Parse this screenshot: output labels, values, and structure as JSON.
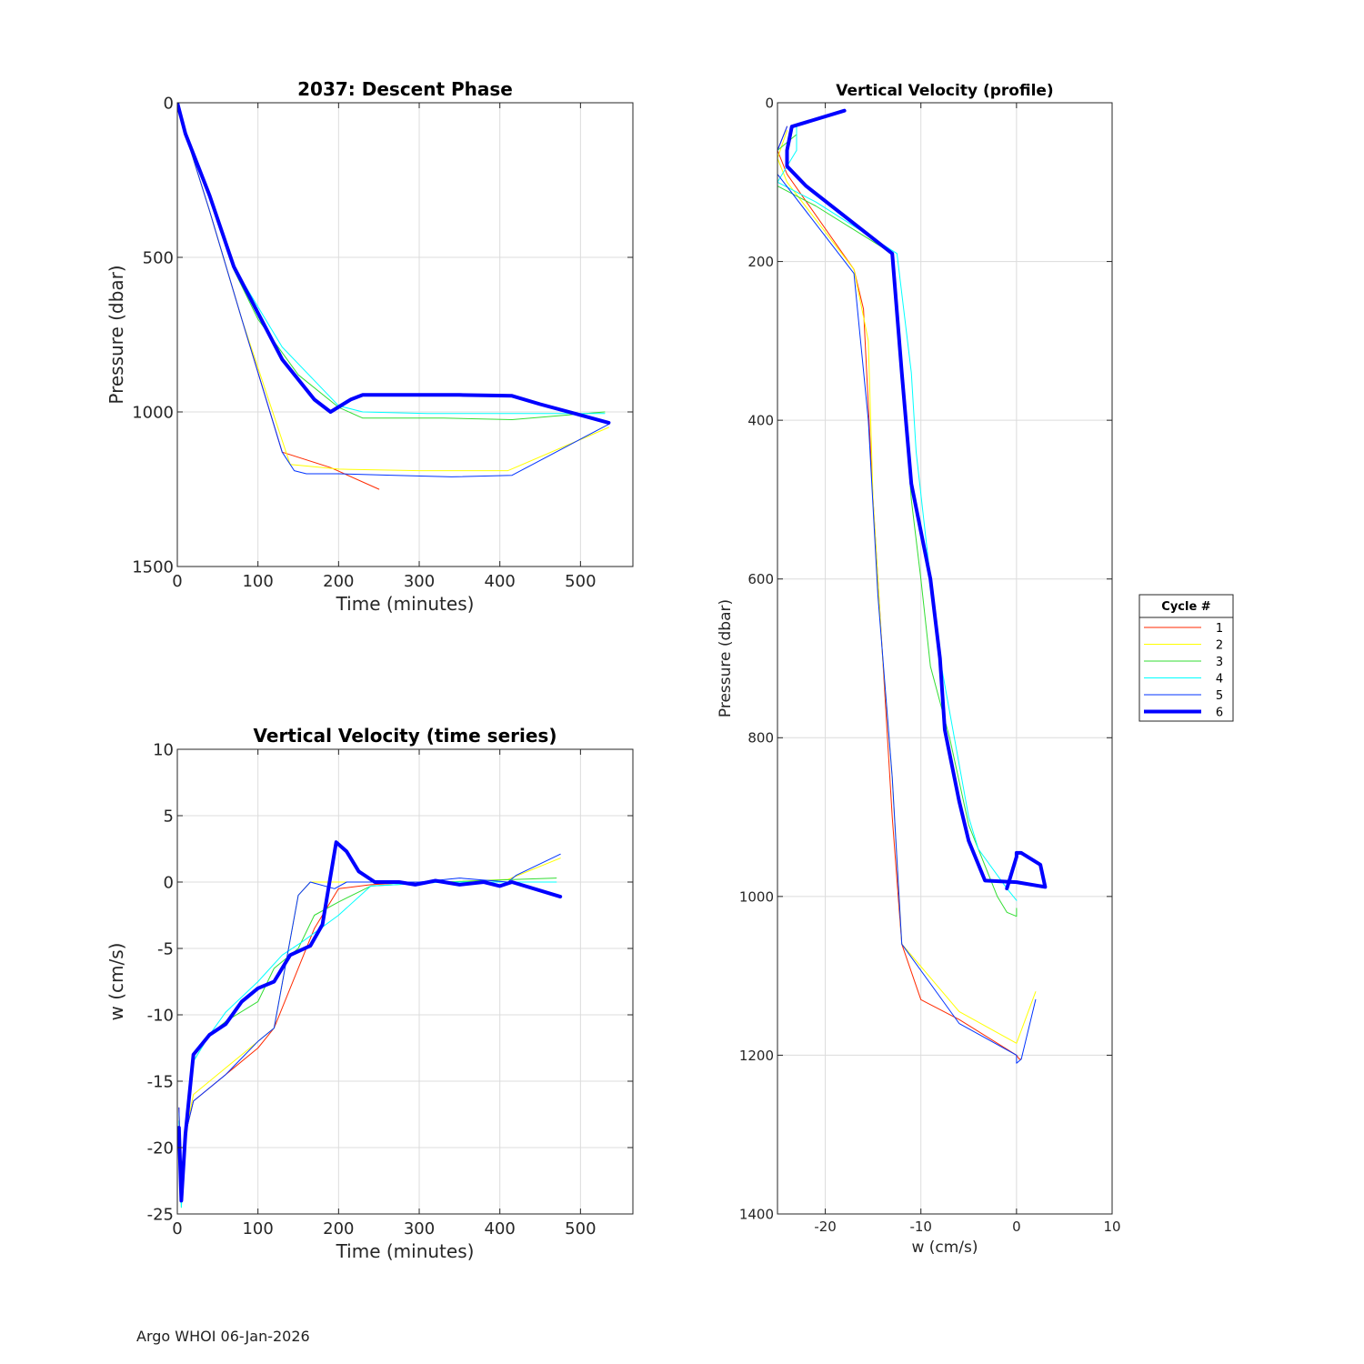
{
  "footer": "Argo WHOI 06-Jan-2026",
  "legend": {
    "title": "Cycle #",
    "entries": [
      {
        "label": "1",
        "color": "#ff2a00",
        "width": 1
      },
      {
        "label": "2",
        "color": "#ffff00",
        "width": 1
      },
      {
        "label": "3",
        "color": "#33dd33",
        "width": 1
      },
      {
        "label": "4",
        "color": "#00ffff",
        "width": 1
      },
      {
        "label": "5",
        "color": "#0033ff",
        "width": 1
      },
      {
        "label": "6",
        "color": "#0000ff",
        "width": 4
      }
    ]
  },
  "chart_data": [
    {
      "id": "descent",
      "type": "line",
      "title": "2037: Descent Phase",
      "xlabel": "Time (minutes)",
      "ylabel": "Pressure (dbar)",
      "xlim": [
        0,
        565
      ],
      "ylim": [
        0,
        1500
      ],
      "y_reversed": true,
      "xticks": [
        0,
        100,
        200,
        300,
        400,
        500
      ],
      "yticks": [
        0,
        500,
        1000,
        1500
      ],
      "grid": true,
      "series": [
        {
          "name": "1",
          "points": [
            [
              0,
              0
            ],
            [
              10,
              100
            ],
            [
              40,
              350
            ],
            [
              80,
              700
            ],
            [
              130,
              1130
            ],
            [
              190,
              1180
            ],
            [
              250,
              1250
            ]
          ]
        },
        {
          "name": "2",
          "points": [
            [
              0,
              0
            ],
            [
              10,
              100
            ],
            [
              40,
              350
            ],
            [
              80,
              700
            ],
            [
              140,
              1170
            ],
            [
              200,
              1185
            ],
            [
              300,
              1190
            ],
            [
              410,
              1190
            ],
            [
              535,
              1050
            ]
          ]
        },
        {
          "name": "3",
          "points": [
            [
              0,
              0
            ],
            [
              10,
              100
            ],
            [
              40,
              310
            ],
            [
              70,
              540
            ],
            [
              100,
              700
            ],
            [
              150,
              880
            ],
            [
              200,
              985
            ],
            [
              230,
              1020
            ],
            [
              330,
              1020
            ],
            [
              415,
              1025
            ],
            [
              530,
              1000
            ]
          ]
        },
        {
          "name": "4",
          "points": [
            [
              0,
              0
            ],
            [
              10,
              100
            ],
            [
              40,
              300
            ],
            [
              70,
              530
            ],
            [
              130,
              790
            ],
            [
              200,
              980
            ],
            [
              230,
              1000
            ],
            [
              310,
              1005
            ],
            [
              410,
              1005
            ],
            [
              530,
              1005
            ]
          ]
        },
        {
          "name": "5",
          "points": [
            [
              0,
              0
            ],
            [
              10,
              100
            ],
            [
              40,
              350
            ],
            [
              80,
              700
            ],
            [
              130,
              1130
            ],
            [
              145,
              1190
            ],
            [
              160,
              1200
            ],
            [
              200,
              1200
            ],
            [
              270,
              1205
            ],
            [
              340,
              1210
            ],
            [
              415,
              1205
            ],
            [
              535,
              1040
            ]
          ]
        },
        {
          "name": "6",
          "points": [
            [
              0,
              0
            ],
            [
              10,
              100
            ],
            [
              40,
              300
            ],
            [
              70,
              530
            ],
            [
              130,
              830
            ],
            [
              170,
              960
            ],
            [
              190,
              1000
            ],
            [
              215,
              960
            ],
            [
              230,
              945
            ],
            [
              300,
              945
            ],
            [
              350,
              945
            ],
            [
              415,
              948
            ],
            [
              450,
              975
            ],
            [
              535,
              1035
            ]
          ]
        }
      ]
    },
    {
      "id": "wtime",
      "type": "line",
      "title": "Vertical Velocity (time series)",
      "xlabel": "Time (minutes)",
      "ylabel": "w (cm/s)",
      "xlim": [
        0,
        565
      ],
      "ylim": [
        -25,
        10
      ],
      "y_reversed": false,
      "xticks": [
        0,
        100,
        200,
        300,
        400,
        500
      ],
      "yticks": [
        -25,
        -20,
        -15,
        -10,
        -5,
        0,
        5,
        10
      ],
      "grid": true,
      "series": [
        {
          "name": "1",
          "points": [
            [
              2,
              -17
            ],
            [
              5,
              -24
            ],
            [
              10,
              -19
            ],
            [
              20,
              -16.5
            ],
            [
              60,
              -14.5
            ],
            [
              100,
              -12.5
            ],
            [
              120,
              -11
            ],
            [
              140,
              -8
            ],
            [
              170,
              -3.5
            ],
            [
              200,
              -0.5
            ],
            [
              240,
              -0.2
            ],
            [
              300,
              0
            ]
          ]
        },
        {
          "name": "2",
          "points": [
            [
              2,
              -17.5
            ],
            [
              5,
              -24.5
            ],
            [
              10,
              -19
            ],
            [
              20,
              -16
            ],
            [
              60,
              -14
            ],
            [
              100,
              -12
            ],
            [
              120,
              -11
            ],
            [
              150,
              -1
            ],
            [
              165,
              0
            ],
            [
              190,
              0
            ],
            [
              250,
              0
            ],
            [
              330,
              0
            ],
            [
              410,
              0.2
            ],
            [
              475,
              1.8
            ]
          ]
        },
        {
          "name": "3",
          "points": [
            [
              2,
              -18
            ],
            [
              5,
              -24
            ],
            [
              10,
              -18.5
            ],
            [
              20,
              -13.5
            ],
            [
              40,
              -11.5
            ],
            [
              60,
              -10.5
            ],
            [
              100,
              -9
            ],
            [
              120,
              -6.5
            ],
            [
              150,
              -5
            ],
            [
              170,
              -2.5
            ],
            [
              200,
              -1.5
            ],
            [
              240,
              -0.3
            ],
            [
              330,
              0
            ],
            [
              420,
              0.2
            ],
            [
              470,
              0.3
            ]
          ]
        },
        {
          "name": "4",
          "points": [
            [
              2,
              -18
            ],
            [
              5,
              -24.5
            ],
            [
              10,
              -18.5
            ],
            [
              20,
              -13.5
            ],
            [
              40,
              -11.5
            ],
            [
              60,
              -9.8
            ],
            [
              100,
              -7.5
            ],
            [
              130,
              -5.5
            ],
            [
              155,
              -4.5
            ],
            [
              200,
              -2.5
            ],
            [
              240,
              -0.3
            ],
            [
              330,
              0
            ],
            [
              420,
              0
            ],
            [
              470,
              0
            ]
          ]
        },
        {
          "name": "5",
          "points": [
            [
              2,
              -17
            ],
            [
              5,
              -24
            ],
            [
              10,
              -19
            ],
            [
              20,
              -16.5
            ],
            [
              60,
              -14.5
            ],
            [
              100,
              -12
            ],
            [
              120,
              -11
            ],
            [
              150,
              -1
            ],
            [
              165,
              0
            ],
            [
              195,
              -0.5
            ],
            [
              210,
              0
            ],
            [
              240,
              0
            ],
            [
              300,
              0
            ],
            [
              350,
              0.3
            ],
            [
              410,
              0
            ],
            [
              420,
              0.5
            ],
            [
              475,
              2.1
            ]
          ]
        },
        {
          "name": "6",
          "points": [
            [
              2,
              -18.5
            ],
            [
              5,
              -24
            ],
            [
              10,
              -19
            ],
            [
              20,
              -13
            ],
            [
              40,
              -11.5
            ],
            [
              60,
              -10.7
            ],
            [
              80,
              -9
            ],
            [
              100,
              -8
            ],
            [
              120,
              -7.5
            ],
            [
              140,
              -5.5
            ],
            [
              165,
              -4.8
            ],
            [
              180,
              -3.2
            ],
            [
              197,
              3
            ],
            [
              210,
              2.3
            ],
            [
              225,
              0.8
            ],
            [
              245,
              0
            ],
            [
              275,
              0
            ],
            [
              295,
              -0.2
            ],
            [
              320,
              0.1
            ],
            [
              350,
              -0.2
            ],
            [
              380,
              0
            ],
            [
              400,
              -0.3
            ],
            [
              415,
              0
            ],
            [
              475,
              -1.1
            ]
          ]
        }
      ]
    },
    {
      "id": "wprofile",
      "type": "line",
      "title": "Vertical Velocity (profile)",
      "xlabel": "w (cm/s)",
      "ylabel": "Pressure (dbar)",
      "xlim": [
        -25,
        10
      ],
      "ylim": [
        0,
        1400
      ],
      "y_reversed": true,
      "xticks": [
        -20,
        -10,
        0,
        10
      ],
      "yticks": [
        0,
        200,
        400,
        600,
        800,
        1000,
        1200,
        1400
      ],
      "grid": true,
      "series": [
        {
          "name": "1",
          "points": [
            [
              -24,
              30
            ],
            [
              -25,
              60
            ],
            [
              -24,
              90
            ],
            [
              -17,
              210
            ],
            [
              -16,
              260
            ],
            [
              -15,
              500
            ],
            [
              -14,
              700
            ],
            [
              -13,
              900
            ],
            [
              -12,
              1060
            ],
            [
              -10,
              1130
            ],
            [
              -6,
              1155
            ],
            [
              0,
              1200
            ],
            [
              0.3,
              1205
            ],
            [
              0.5,
              1205
            ]
          ]
        },
        {
          "name": "2",
          "points": [
            [
              -24,
              35
            ],
            [
              -25,
              70
            ],
            [
              -24,
              100
            ],
            [
              -17,
              210
            ],
            [
              -15.5,
              300
            ],
            [
              -15,
              500
            ],
            [
              -14,
              700
            ],
            [
              -13,
              850
            ],
            [
              -12,
              1060
            ],
            [
              -6,
              1145
            ],
            [
              0,
              1185
            ],
            [
              2,
              1120
            ]
          ]
        },
        {
          "name": "3",
          "points": [
            [
              -23,
              40
            ],
            [
              -25,
              60
            ],
            [
              -25,
              105
            ],
            [
              -21,
              130
            ],
            [
              -13,
              190
            ],
            [
              -12,
              340
            ],
            [
              -11,
              500
            ],
            [
              -10,
              600
            ],
            [
              -9,
              710
            ],
            [
              -7,
              800
            ],
            [
              -5,
              910
            ],
            [
              -2,
              1000
            ],
            [
              -1,
              1020
            ],
            [
              0,
              1025
            ],
            [
              0,
              1015
            ]
          ]
        },
        {
          "name": "4",
          "points": [
            [
              -23,
              30
            ],
            [
              -23,
              60
            ],
            [
              -25,
              100
            ],
            [
              -21,
              125
            ],
            [
              -12.5,
              190
            ],
            [
              -11,
              340
            ],
            [
              -10.5,
              440
            ],
            [
              -9,
              600
            ],
            [
              -8,
              700
            ],
            [
              -6.5,
              800
            ],
            [
              -5,
              900
            ],
            [
              -4,
              940
            ],
            [
              -1,
              990
            ],
            [
              0,
              1005
            ]
          ]
        },
        {
          "name": "5",
          "points": [
            [
              -24,
              30
            ],
            [
              -25,
              60
            ],
            [
              -25,
              90
            ],
            [
              -17,
              215
            ],
            [
              -15.5,
              400
            ],
            [
              -14.5,
              620
            ],
            [
              -13,
              850
            ],
            [
              -12,
              1060
            ],
            [
              -6,
              1160
            ],
            [
              0,
              1200
            ],
            [
              0,
              1210
            ],
            [
              0.5,
              1205
            ],
            [
              2,
              1130
            ]
          ]
        },
        {
          "name": "6",
          "points": [
            [
              -18,
              10
            ],
            [
              -23.5,
              30
            ],
            [
              -24,
              60
            ],
            [
              -24,
              80
            ],
            [
              -22,
              105
            ],
            [
              -13,
              190
            ],
            [
              -12,
              340
            ],
            [
              -11,
              480
            ],
            [
              -9,
              600
            ],
            [
              -8,
              700
            ],
            [
              -7.5,
              790
            ],
            [
              -6,
              880
            ],
            [
              -5,
              930
            ],
            [
              -3.3,
              980
            ],
            [
              0,
              982
            ],
            [
              3,
              988
            ],
            [
              2.5,
              960
            ],
            [
              0.5,
              945
            ],
            [
              0,
              945
            ],
            [
              0,
              950
            ],
            [
              -1,
              990
            ]
          ]
        }
      ]
    }
  ]
}
